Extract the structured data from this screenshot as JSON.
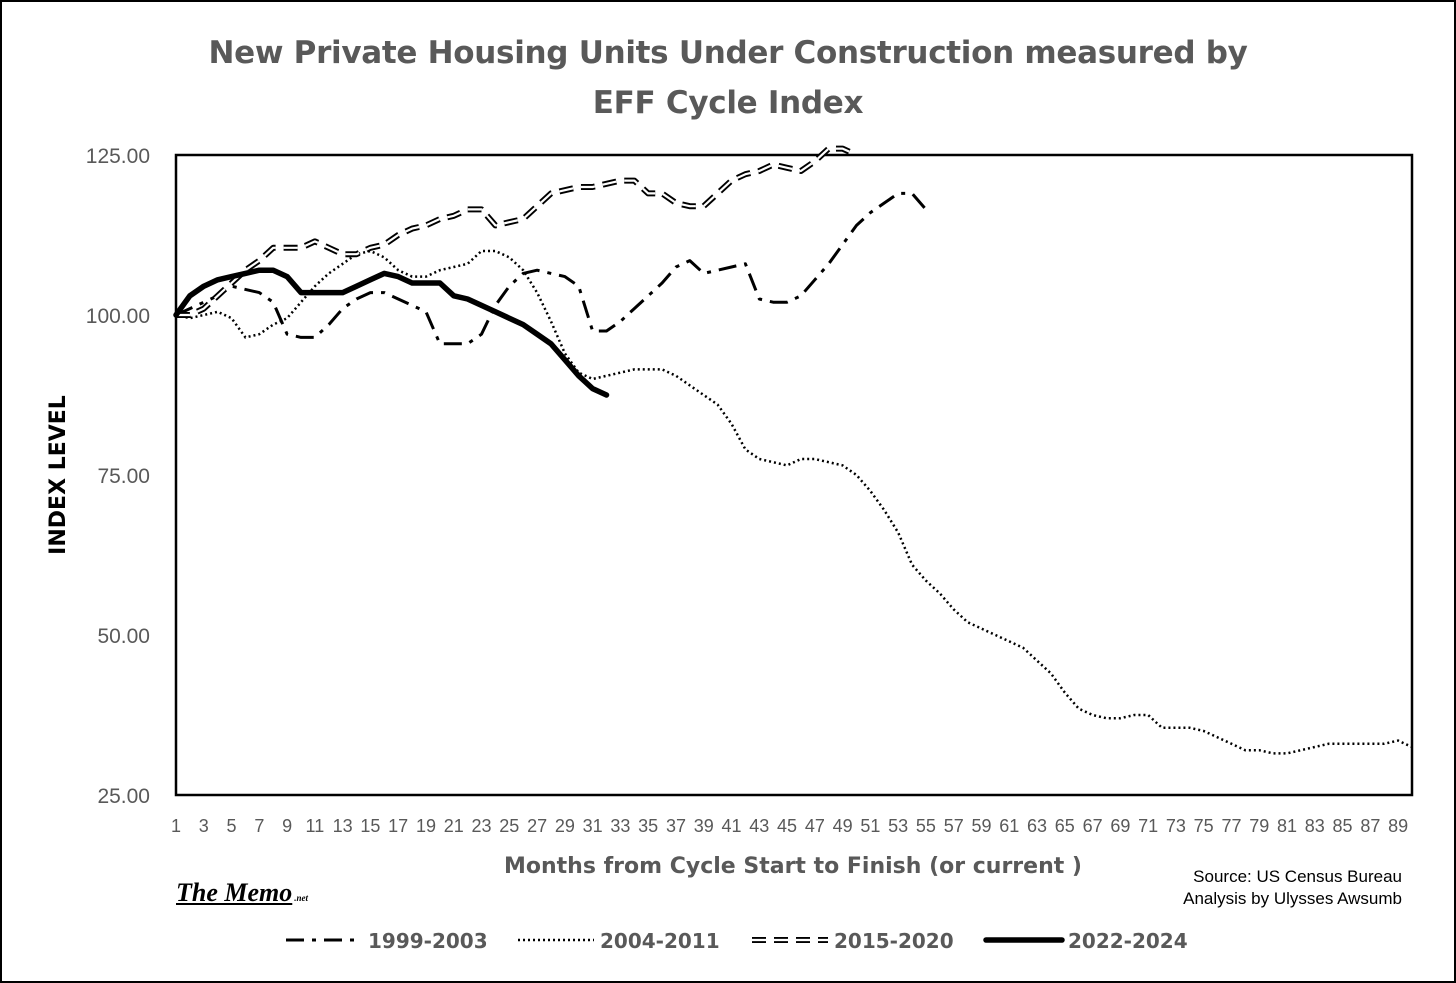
{
  "chart_data": {
    "type": "line",
    "title": "New Private Housing Units Under Construction measured by EFF Cycle Index",
    "xlabel": "Months from Cycle Start to Finish (or current )",
    "ylabel": "INDEX LEVEL",
    "ylim": [
      25,
      125
    ],
    "yticks": [
      "125.00",
      "100.00",
      "75.00",
      "50.00",
      "25.00"
    ],
    "xticks": [
      1,
      3,
      5,
      7,
      9,
      11,
      13,
      15,
      17,
      19,
      21,
      23,
      25,
      27,
      29,
      31,
      33,
      35,
      37,
      39,
      41,
      43,
      45,
      47,
      49,
      51,
      53,
      55,
      57,
      59,
      61,
      63,
      65,
      67,
      69,
      71,
      73,
      75,
      77,
      79,
      81,
      83,
      85,
      87,
      89
    ],
    "xlim": [
      1,
      90
    ],
    "grid": false,
    "legend_position": "bottom",
    "series": [
      {
        "name": "1999-2003",
        "style": "dash-dot",
        "values": [
          100,
          101,
          102,
          103,
          104.5,
          104,
          103.5,
          102,
          97,
          96.5,
          96.5,
          98.5,
          101,
          102.5,
          103.5,
          103.5,
          102.5,
          101.5,
          100.5,
          95.5,
          95.5,
          95.5,
          97,
          101.5,
          104.5,
          106.5,
          107,
          106.5,
          106,
          104.5,
          97.5,
          97.5,
          99,
          101,
          103,
          105,
          107.5,
          108.5,
          106.5,
          107,
          107.5,
          108,
          102.5,
          102,
          102,
          103,
          105.5,
          108,
          111,
          114,
          116,
          117.5,
          119,
          119,
          116.5
        ]
      },
      {
        "name": "2004-2011",
        "style": "dotted",
        "values": [
          100,
          99.5,
          100,
          100.5,
          99.5,
          96.5,
          97,
          98.5,
          99.5,
          102,
          104.5,
          106.5,
          108,
          109.5,
          110,
          109,
          107,
          106,
          106,
          107,
          107.5,
          108,
          110,
          110,
          109,
          107,
          103.5,
          99,
          94,
          91,
          90,
          90.5,
          91,
          91.5,
          91.5,
          91.5,
          90.5,
          89,
          87.5,
          86,
          83,
          79,
          77.5,
          77,
          76.5,
          77.5,
          77.5,
          77,
          76.5,
          75,
          72.5,
          69.5,
          66,
          61,
          58.5,
          56.5,
          54,
          52,
          51,
          50,
          49,
          48,
          46,
          44,
          41,
          38.5,
          37.5,
          37,
          37,
          37.5,
          37.5,
          35.5,
          35.5,
          35.5,
          35,
          34,
          33,
          32,
          32,
          31.5,
          31.5,
          32,
          32.5,
          33,
          33,
          33,
          33,
          33,
          33.5,
          32.5
        ]
      },
      {
        "name": "2015-2020",
        "style": "double-dash",
        "values": [
          100,
          100,
          101,
          103,
          105,
          107,
          108.5,
          110.5,
          110.5,
          110.5,
          111.5,
          110.5,
          109.5,
          109.5,
          110.5,
          111,
          112.5,
          113.5,
          114,
          115,
          115.5,
          116.5,
          116.5,
          114,
          114.5,
          115,
          117,
          119,
          119.5,
          120,
          120,
          120.5,
          121,
          121,
          119,
          119,
          117.5,
          117,
          117,
          119,
          121,
          122,
          122.5,
          123.5,
          123,
          122.5,
          124,
          126,
          126,
          125
        ]
      },
      {
        "name": "2022-2024",
        "style": "solid-thick",
        "values": [
          100,
          103,
          104.5,
          105.5,
          106,
          106.5,
          107,
          107,
          106,
          103.5,
          103.5,
          103.5,
          103.5,
          104.5,
          105.5,
          106.5,
          106,
          105,
          105,
          105,
          103,
          102.5,
          101.5,
          100.5,
          99.5,
          98.5,
          97,
          95.5,
          93,
          90.5,
          88.5,
          87.5
        ]
      }
    ]
  },
  "source_lines": [
    "Source: US Census Bureau",
    "Analysis by Ulysses Awsumb"
  ],
  "logo": {
    "text": "The Memo",
    "suffix": ".net"
  }
}
